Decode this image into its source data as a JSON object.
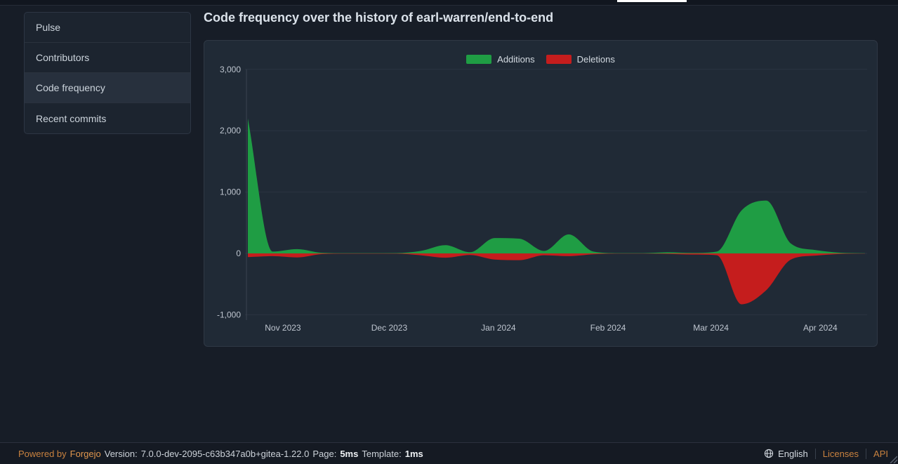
{
  "sidebar": {
    "items": [
      {
        "label": "Pulse",
        "active": false
      },
      {
        "label": "Contributors",
        "active": false
      },
      {
        "label": "Code frequency",
        "active": true
      },
      {
        "label": "Recent commits",
        "active": false
      }
    ]
  },
  "main": {
    "title": "Code frequency over the history of earl-warren/end-to-end"
  },
  "chart_data": {
    "type": "area",
    "title": "Code frequency",
    "legend_position": "top-center",
    "grid": true,
    "x_unit": "week",
    "x_tick_labels": [
      "Nov 2023",
      "Dec 2023",
      "Jan 2024",
      "Feb 2024",
      "Mar 2024",
      "Apr 2024"
    ],
    "x_tick_positions": [
      1.42,
      5.73,
      10.15,
      14.59,
      18.76,
      23.19
    ],
    "y_tick_labels": [
      "3,000",
      "2,000",
      "1,000",
      "0",
      "-1,000"
    ],
    "y_tick_values": [
      3000,
      2000,
      1000,
      0,
      -1000
    ],
    "ylim": [
      -1000,
      3000
    ],
    "legend": [
      {
        "name": "Additions",
        "color": "#1f9d44"
      },
      {
        "name": "Deletions",
        "color": "#c51d1d"
      }
    ],
    "series": [
      {
        "name": "Additions",
        "color": "#1f9d44",
        "values": [
          2200,
          30,
          70,
          10,
          5,
          5,
          6,
          40,
          135,
          20,
          250,
          240,
          40,
          310,
          30,
          5,
          5,
          18,
          8,
          30,
          700,
          860,
          160,
          55,
          12,
          3
        ]
      },
      {
        "name": "Deletions",
        "color": "#c51d1d",
        "values": [
          -60,
          -45,
          -65,
          -12,
          -5,
          -5,
          -5,
          -30,
          -70,
          -25,
          -100,
          -110,
          -30,
          -45,
          -15,
          -3,
          -3,
          -8,
          -18,
          -30,
          -830,
          -600,
          -100,
          -35,
          -8,
          -2
        ]
      }
    ]
  },
  "footer": {
    "powered_by": "Powered by",
    "forgejo_link": "Forgejo",
    "version_label": "Version:",
    "version": "7.0.0-dev-2095-c63b347a0b+gitea-1.22.0",
    "page_label": "Page:",
    "page_time": "5ms",
    "template_label": "Template:",
    "template_time": "1ms",
    "language": "English",
    "licenses": "Licenses",
    "api": "API"
  },
  "colors": {
    "additions": "#1f9d44",
    "deletions": "#c51d1d",
    "page_bg": "#171d27",
    "panel_bg": "#202a36",
    "gridline": "#2b3442",
    "axis_line": "#3a4350",
    "tick_text": "#bec5cf",
    "accent_orange": "#e0964e"
  }
}
